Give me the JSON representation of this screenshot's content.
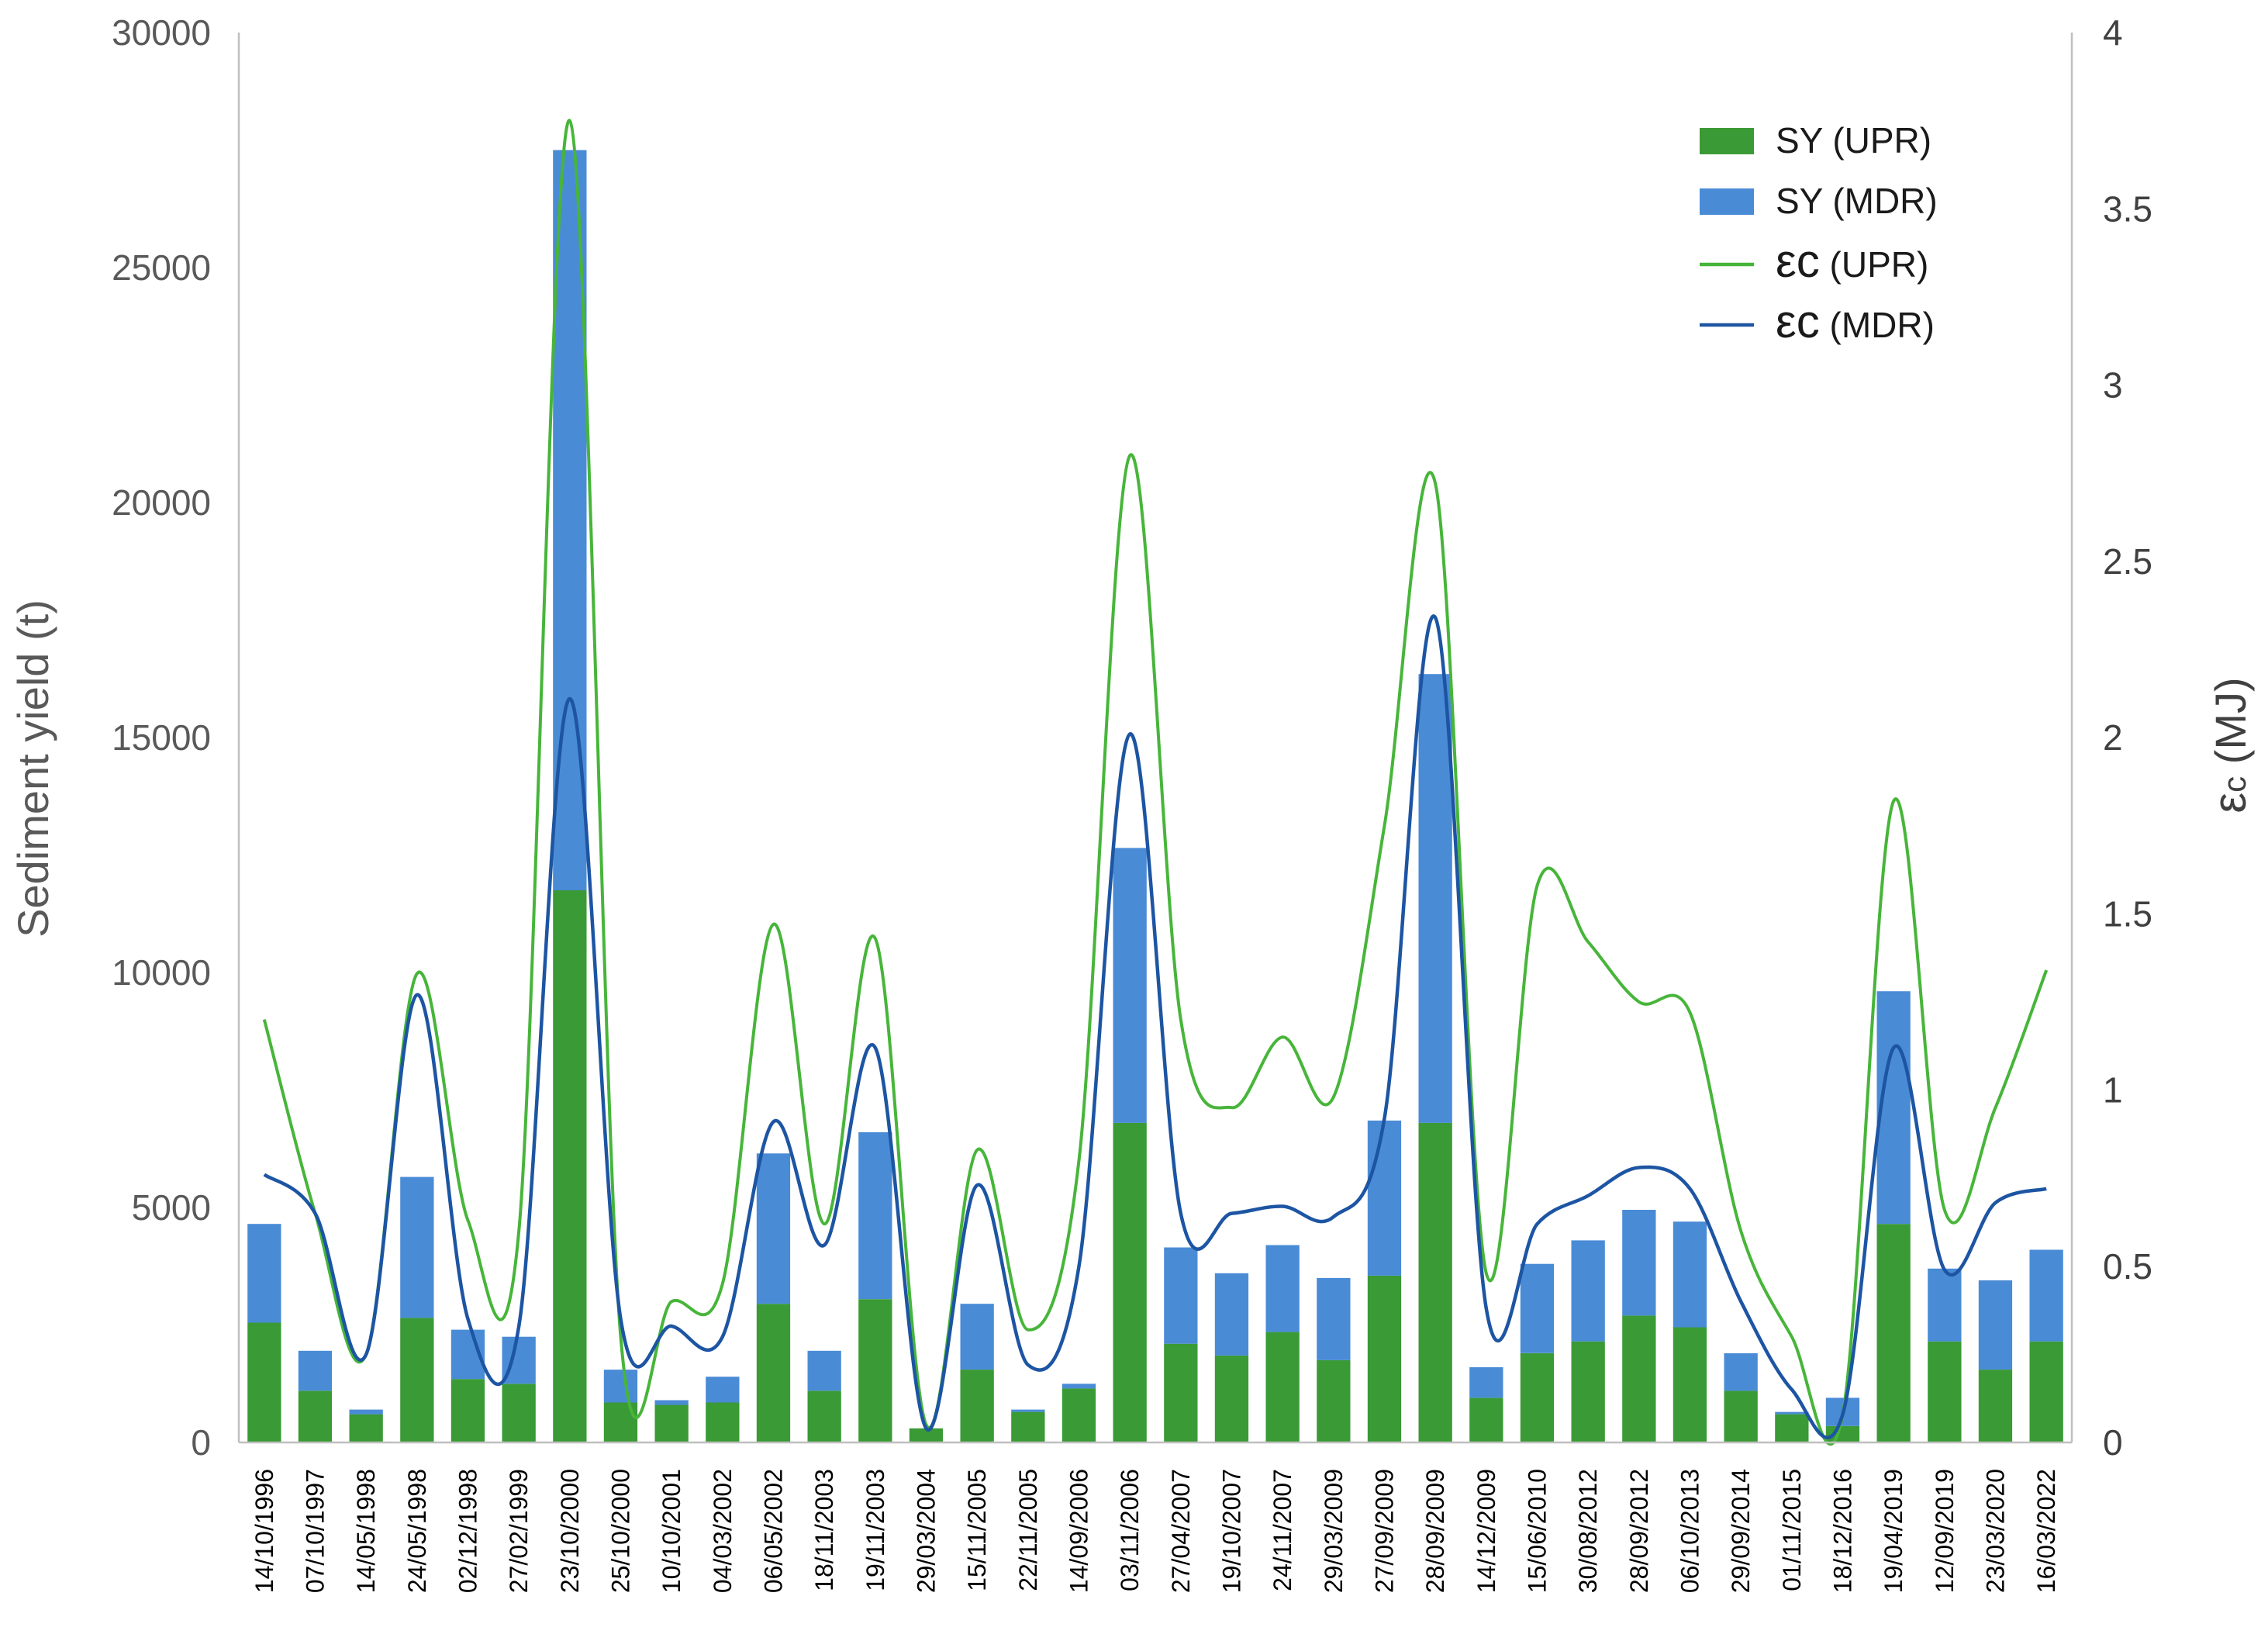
{
  "chart_data": {
    "type": "bar",
    "stacked": true,
    "categories": [
      "14/10/1996",
      "07/10/1997",
      "14/05/1998",
      "24/05/1998",
      "02/12/1998",
      "27/02/1999",
      "23/10/2000",
      "25/10/2000",
      "10/10/2001",
      "04/03/2002",
      "06/05/2002",
      "18/11/2003",
      "19/11/2003",
      "29/03/2004",
      "15/11/2005",
      "22/11/2005",
      "14/09/2006",
      "03/11/2006",
      "27/04/2007",
      "19/10/2007",
      "24/11/2007",
      "29/03/2009",
      "27/09/2009",
      "28/09/2009",
      "14/12/2009",
      "15/06/2010",
      "30/08/2012",
      "28/09/2012",
      "06/10/2013",
      "29/09/2014",
      "01/11/2015",
      "18/12/2016",
      "19/04/2019",
      "12/09/2019",
      "23/03/2020",
      "16/03/2022"
    ],
    "bar_series": [
      {
        "name": "SY (UPR)",
        "color": "#3a9a35",
        "values": [
          2550,
          1100,
          600,
          2650,
          1350,
          1250,
          11750,
          850,
          800,
          850,
          2950,
          1100,
          3050,
          300,
          1550,
          650,
          1150,
          6800,
          2100,
          1850,
          2350,
          1750,
          3550,
          6800,
          950,
          1900,
          2150,
          2700,
          2450,
          1100,
          600,
          350,
          4650,
          2150,
          1550,
          2150
        ]
      },
      {
        "name": "SY (MDR)",
        "color": "#4a8bd6",
        "values": [
          2100,
          850,
          100,
          3000,
          1050,
          1000,
          15750,
          700,
          100,
          550,
          3200,
          850,
          3550,
          0,
          1400,
          50,
          100,
          5850,
          2050,
          1750,
          1850,
          1750,
          3300,
          9550,
          650,
          1900,
          2150,
          2250,
          2250,
          800,
          50,
          600,
          4950,
          1550,
          1900,
          1950
        ]
      }
    ],
    "line_series": [
      {
        "name": "εc (UPR)",
        "axis": "right",
        "color": "#47b53a",
        "values": [
          1.2,
          0.65,
          0.25,
          1.33,
          0.63,
          0.6,
          3.75,
          0.3,
          0.4,
          0.45,
          1.47,
          0.62,
          1.43,
          0.05,
          0.83,
          0.32,
          0.8,
          2.8,
          1.2,
          0.95,
          1.15,
          0.98,
          1.75,
          2.72,
          0.48,
          1.58,
          1.42,
          1.25,
          1.22,
          0.6,
          0.3,
          0.08,
          1.82,
          0.66,
          0.95,
          1.34
        ]
      },
      {
        "name": "εc (MDR)",
        "axis": "right",
        "color": "#1d55a3",
        "values": [
          0.76,
          0.65,
          0.25,
          1.27,
          0.35,
          0.33,
          2.11,
          0.35,
          0.33,
          0.3,
          0.91,
          0.56,
          1.12,
          0.04,
          0.73,
          0.22,
          0.5,
          2.01,
          0.65,
          0.65,
          0.67,
          0.64,
          0.92,
          2.34,
          0.38,
          0.62,
          0.7,
          0.78,
          0.72,
          0.4,
          0.15,
          0.08,
          1.12,
          0.49,
          0.68,
          0.72
        ]
      }
    ],
    "ylabel": "Sediment yield (t)",
    "y2label_symbol": "ε",
    "y2label_sub": "c",
    "y2label_unit": " (MJ)",
    "ylim": [
      0,
      30000
    ],
    "y2lim": [
      0,
      4
    ],
    "yticks": [
      "0",
      "5000",
      "10000",
      "15000",
      "20000",
      "25000",
      "30000"
    ],
    "y2ticks": [
      "0",
      "0.5",
      "1",
      "1.5",
      "2",
      "2.5",
      "3",
      "3.5",
      "4"
    ],
    "legend_position": "top-right",
    "legend": [
      {
        "kind": "bar",
        "label": "SY (UPR)",
        "color": "#3a9a35"
      },
      {
        "kind": "bar",
        "label": "SY (MDR)",
        "color": "#4a8bd6"
      },
      {
        "kind": "line",
        "symbol": "εc",
        "label": " (UPR)",
        "color": "#47b53a"
      },
      {
        "kind": "line",
        "symbol": "εc",
        "label": " (MDR)",
        "color": "#1d55a3"
      }
    ],
    "grid": false
  }
}
